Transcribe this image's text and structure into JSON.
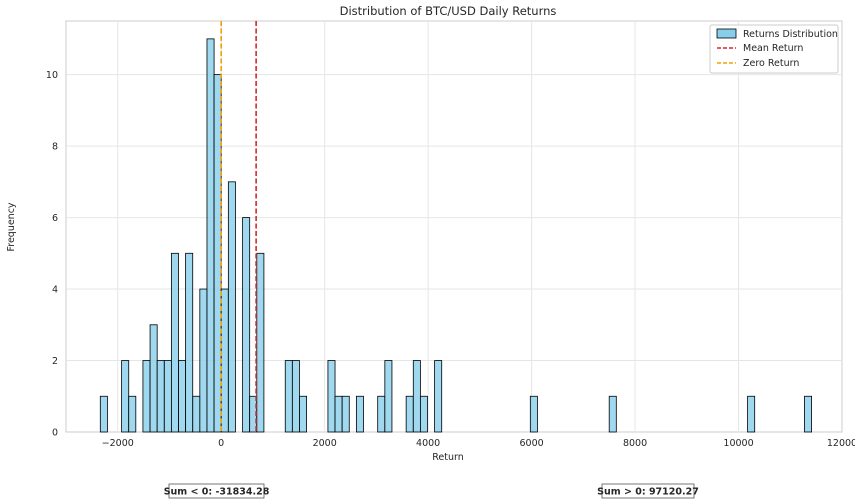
{
  "chart_data": {
    "type": "bar",
    "title": "Distribution of BTC/USD Daily Returns",
    "xlabel": "Return",
    "ylabel": "Frequency",
    "xlim": [
      -3000,
      12000
    ],
    "ylim": [
      0,
      11.5
    ],
    "xticks": [
      -2000,
      0,
      2000,
      4000,
      6000,
      8000,
      10000,
      12000
    ],
    "yticks": [
      0,
      2,
      4,
      6,
      8,
      10
    ],
    "grid": true,
    "legend_position": "top-right",
    "bin_width": 137.5,
    "bins": [
      {
        "x": -2337,
        "count": 1
      },
      {
        "x": -1925,
        "count": 2
      },
      {
        "x": -1788,
        "count": 1
      },
      {
        "x": -1513,
        "count": 2
      },
      {
        "x": -1375,
        "count": 3
      },
      {
        "x": -1238,
        "count": 2
      },
      {
        "x": -1100,
        "count": 2
      },
      {
        "x": -963,
        "count": 5
      },
      {
        "x": -825,
        "count": 2
      },
      {
        "x": -688,
        "count": 5
      },
      {
        "x": -550,
        "count": 1
      },
      {
        "x": -413,
        "count": 4
      },
      {
        "x": -275,
        "count": 11
      },
      {
        "x": -138,
        "count": 10
      },
      {
        "x": 0,
        "count": 4
      },
      {
        "x": 138,
        "count": 7
      },
      {
        "x": 413,
        "count": 6
      },
      {
        "x": 550,
        "count": 1
      },
      {
        "x": 688,
        "count": 5
      },
      {
        "x": 1238,
        "count": 2
      },
      {
        "x": 1375,
        "count": 2
      },
      {
        "x": 1513,
        "count": 1
      },
      {
        "x": 2063,
        "count": 2
      },
      {
        "x": 2200,
        "count": 1
      },
      {
        "x": 2338,
        "count": 1
      },
      {
        "x": 2613,
        "count": 1
      },
      {
        "x": 3025,
        "count": 1
      },
      {
        "x": 3163,
        "count": 2
      },
      {
        "x": 3575,
        "count": 1
      },
      {
        "x": 3713,
        "count": 2
      },
      {
        "x": 3850,
        "count": 1
      },
      {
        "x": 4125,
        "count": 2
      },
      {
        "x": 5975,
        "count": 1
      },
      {
        "x": 7500,
        "count": 1
      },
      {
        "x": 10175,
        "count": 1
      },
      {
        "x": 11275,
        "count": 1
      }
    ],
    "bar_color": "#87ceeb",
    "bar_edge_color": "#000000",
    "reference_lines": [
      {
        "name": "Mean Return",
        "x": 675,
        "color": "#d62728",
        "style": "dashed"
      },
      {
        "name": "Zero Return",
        "x": 0,
        "color": "#f5a000",
        "style": "dashed"
      }
    ],
    "series_name": "Returns Distribution",
    "annotations": {
      "sum_negative": "Sum < 0: -31834.28",
      "sum_positive": "Sum > 0: 97120.27"
    }
  }
}
